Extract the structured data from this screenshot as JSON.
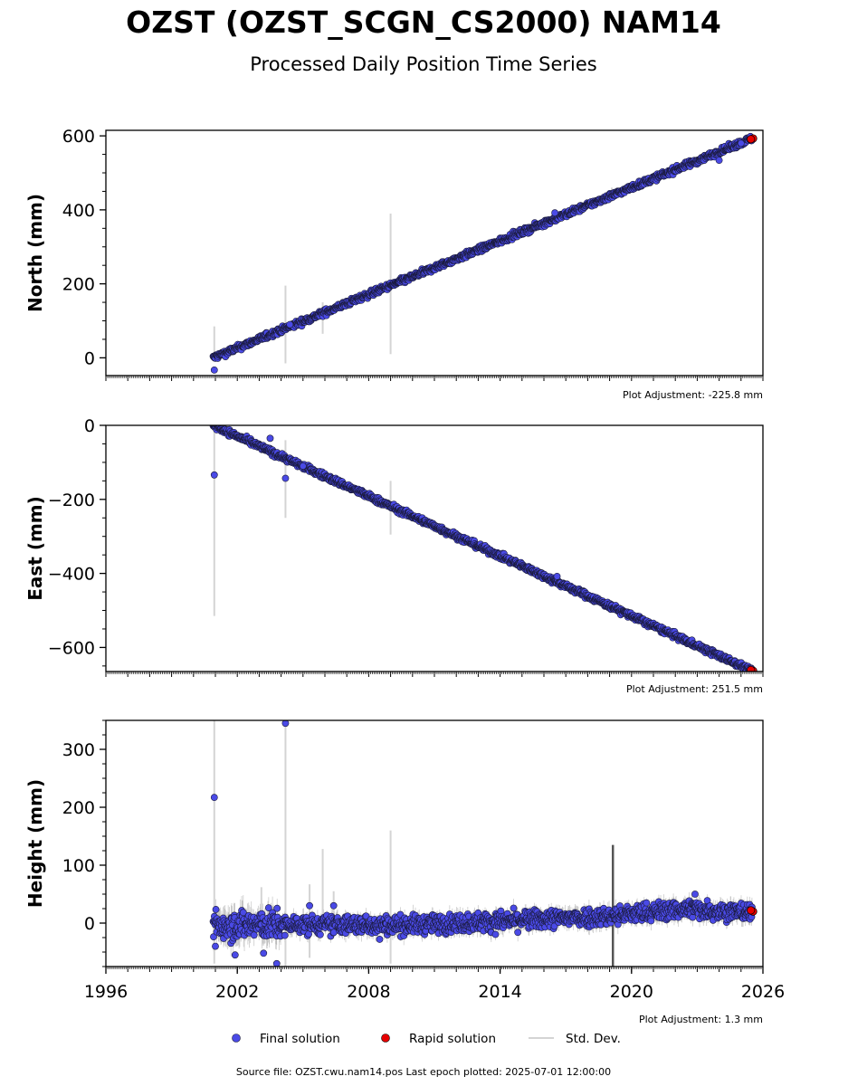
{
  "title": "OZST (OZST_SCGN_CS2000) NAM14",
  "subtitle": "Processed Daily Position Time Series",
  "footer": "Source file: OZST.cwu.nam14.pos  Last epoch plotted: 2025-07-01 12:00:00",
  "legend": {
    "final_label": "Final solution",
    "rapid_label": "Rapid solution",
    "std_label": "Std. Dev."
  },
  "colors": {
    "final": "#4a4ae6",
    "final_edge": "#1a1a3a",
    "rapid": "#e60000",
    "std": "#d4d4d4"
  },
  "chart_data": [
    {
      "type": "scatter",
      "id": "north",
      "ylabel": "North (mm)",
      "adjustment": "Plot Adjustment: -225.8 mm",
      "xlim": [
        1996,
        2026
      ],
      "ylim": [
        -48,
        615
      ],
      "yticks": [
        0,
        200,
        400,
        600
      ],
      "yminor_step": 50,
      "show_xtick_labels": false,
      "trend": {
        "x": [
          2000.9,
          2025.5
        ],
        "y": [
          0,
          593
        ]
      },
      "noise": 4,
      "std_base": 5,
      "outliers": [
        {
          "x": 2000.95,
          "y": -33
        },
        {
          "x": 2004.4,
          "y": 90
        },
        {
          "x": 2016.5,
          "y": 392
        },
        {
          "x": 2024.0,
          "y": 534
        },
        {
          "x": 2025.0,
          "y": 580
        }
      ],
      "big_std": [
        {
          "x": 2000.95,
          "lo": -5,
          "hi": 85
        },
        {
          "x": 2004.2,
          "lo": -15,
          "hi": 195
        },
        {
          "x": 2005.9,
          "lo": 65,
          "hi": 150
        },
        {
          "x": 2009.0,
          "lo": 10,
          "hi": 390
        },
        {
          "x": 2019.1,
          "lo": 430,
          "hi": 460
        }
      ],
      "rapid": [
        {
          "x": 2025.55,
          "y": 593
        },
        {
          "x": 2025.45,
          "y": 591
        }
      ]
    },
    {
      "type": "scatter",
      "id": "east",
      "ylabel": "East (mm)",
      "adjustment": "Plot Adjustment: 251.5 mm",
      "xlim": [
        1996,
        2026
      ],
      "ylim": [
        -665,
        0
      ],
      "yticks": [
        0,
        -200,
        -400,
        -600
      ],
      "yminor_step": 50,
      "show_xtick_labels": false,
      "trend": {
        "x": [
          2000.9,
          2025.5
        ],
        "y": [
          0,
          -663
        ]
      },
      "noise": 4,
      "std_base": 5,
      "outliers": [
        {
          "x": 2000.95,
          "y": -134
        },
        {
          "x": 2003.5,
          "y": -35
        },
        {
          "x": 2004.2,
          "y": -143
        },
        {
          "x": 2005.0,
          "y": -110
        },
        {
          "x": 2016.6,
          "y": -408
        }
      ],
      "big_std": [
        {
          "x": 2000.95,
          "lo": -515,
          "hi": -5
        },
        {
          "x": 2004.2,
          "lo": -250,
          "hi": -40
        },
        {
          "x": 2009.0,
          "lo": -295,
          "hi": -150
        }
      ],
      "rapid": [
        {
          "x": 2025.55,
          "y": -663
        },
        {
          "x": 2025.45,
          "y": -661
        }
      ]
    },
    {
      "type": "scatter",
      "id": "height",
      "ylabel": "Height (mm)",
      "adjustment": "Plot Adjustment: 1.3 mm",
      "xlim": [
        1996,
        2026
      ],
      "ylim": [
        -75,
        350
      ],
      "yticks": [
        0,
        100,
        200,
        300
      ],
      "yminor_step": 25,
      "show_xtick_labels": true,
      "xticks": [
        1996,
        2002,
        2008,
        2014,
        2020,
        2026
      ],
      "trend": {
        "x": [
          2000.9,
          2010,
          2015,
          2019,
          2022.5,
          2025.5
        ],
        "y": [
          -3,
          -3,
          5,
          12,
          25,
          18
        ]
      },
      "noise": 8,
      "std_base": 12,
      "outliers": [
        {
          "x": 2000.95,
          "y": 217
        },
        {
          "x": 2004.2,
          "y": 345
        },
        {
          "x": 2001.9,
          "y": -55
        },
        {
          "x": 2003.8,
          "y": -70
        },
        {
          "x": 2003.2,
          "y": -52
        },
        {
          "x": 2005.3,
          "y": 30
        },
        {
          "x": 2006.4,
          "y": 30
        },
        {
          "x": 2008.5,
          "y": -28
        },
        {
          "x": 2001.0,
          "y": -40
        },
        {
          "x": 2022.9,
          "y": 50
        }
      ],
      "big_std": [
        {
          "x": 2000.95,
          "lo": -70,
          "hi": 350
        },
        {
          "x": 2004.2,
          "lo": -75,
          "hi": 350
        },
        {
          "x": 2005.9,
          "lo": -15,
          "hi": 128
        },
        {
          "x": 2009.0,
          "lo": -70,
          "hi": 160
        },
        {
          "x": 2019.15,
          "lo": -75,
          "hi": 135
        },
        {
          "x": 2005.3,
          "lo": -60,
          "hi": 67
        },
        {
          "x": 2006.4,
          "lo": -10,
          "hi": 55
        },
        {
          "x": 2003.1,
          "lo": -10,
          "hi": 62
        }
      ],
      "rapid": [
        {
          "x": 2025.55,
          "y": 20
        },
        {
          "x": 2025.45,
          "y": 22
        }
      ]
    }
  ]
}
